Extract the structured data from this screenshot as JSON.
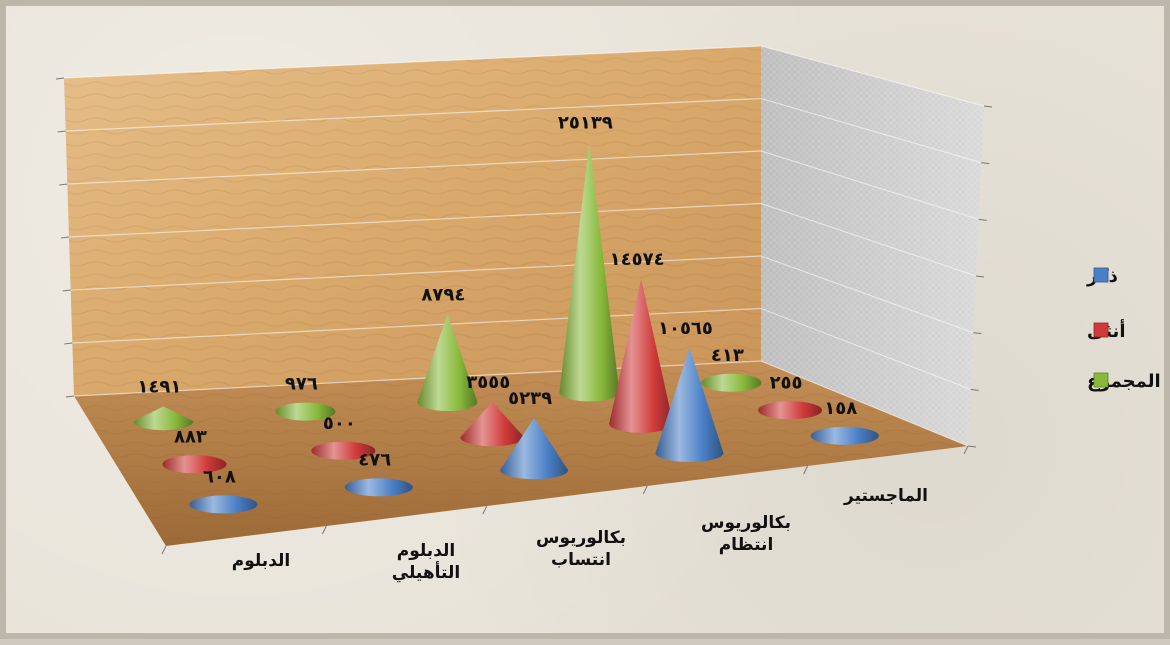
{
  "chart_data": {
    "type": "bar",
    "categories": [
      "الدبلوم",
      "الدبلوم التأهيلي",
      "بكالوريوس انتساب",
      "بكالوريوس انتظام",
      "الماجستير"
    ],
    "category_lines": [
      [
        "الدبلوم"
      ],
      [
        "الدبلوم",
        "التأهيلي"
      ],
      [
        "بكالوريوس",
        "انتساب"
      ],
      [
        "بكالوريوس",
        "انتظام"
      ],
      [
        "الماجستير"
      ]
    ],
    "series": [
      {
        "name": "ذكر",
        "color": "#4a7fc6",
        "values": [
          608,
          476,
          5239,
          10565,
          158
        ],
        "labels": [
          "٦٠٨",
          "٤٧٦",
          "٥٢٣٩",
          "١٠٥٦٥",
          "١٥٨"
        ]
      },
      {
        "name": "أنثى",
        "color": "#d03a3a",
        "values": [
          883,
          500,
          3555,
          14574,
          255
        ],
        "labels": [
          "٨٨٣",
          "٥٠٠",
          "٣٥٥٥",
          "١٤٥٧٤",
          "٢٥٥"
        ]
      },
      {
        "name": "المجموع",
        "color": "#88b93a",
        "values": [
          1491,
          976,
          8794,
          25139,
          413
        ],
        "labels": [
          "١٤٩١",
          "٩٧٦",
          "٨٧٩٤",
          "٢٥١٣٩",
          "٤١٣"
        ]
      }
    ],
    "legend_position": "right",
    "grid": true
  }
}
